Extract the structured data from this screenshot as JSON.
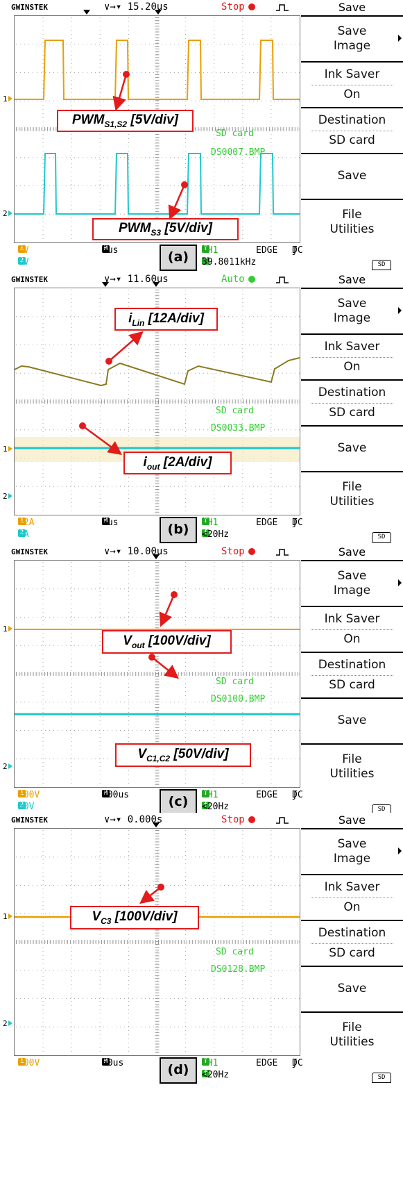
{
  "brand": "GWINSTEK",
  "menu": {
    "title": "Save",
    "save_image": [
      "Save",
      "Image"
    ],
    "ink_saver": [
      "Ink Saver",
      "On"
    ],
    "destination": [
      "Destination",
      "SD card"
    ],
    "save": "Save",
    "file_utilities": [
      "File",
      "Utilities"
    ]
  },
  "sd_icon": "SD",
  "colors": {
    "ch1": "#e8a000",
    "ch2": "#1ec8cc",
    "annotation_border": "#e31b1b",
    "arrow": "#e31b1b",
    "overlay_text": "#33cc33"
  },
  "panels": [
    {
      "tag": "(a)",
      "timebase": "15.20us",
      "run_state": "Stop",
      "run_color": "#e31b1b",
      "overlay_line1": "SD card",
      "overlay_line2": "DS0007.BMP",
      "ch1_scale": "5V",
      "ch2_scale": "5V",
      "time_div": "6us",
      "trigger_source": "CH1",
      "trigger_type": "EDGE",
      "coupling": "DC",
      "trigger_freq": "39.8011kHz",
      "annotations": [
        {
          "main": "PWM",
          "sub": "S1,S2",
          "rest": " [5V/div]"
        },
        {
          "main": "PWM",
          "sub": "S3",
          "rest": " [5V/div]"
        }
      ]
    },
    {
      "tag": "(b)",
      "timebase": "11.60us",
      "run_state": "Auto",
      "run_color": "#33cc33",
      "overlay_line1": "SD card",
      "overlay_line2": "DS0033.BMP",
      "ch1_scale": "12A",
      "ch2_scale": "2A",
      "time_div": "6us",
      "trigger_source": "CH1",
      "trigger_type": "EDGE",
      "coupling": "DC",
      "trigger_freq": "<20Hz",
      "annotations": [
        {
          "main": "i",
          "sub": "Lin",
          "rest": " [12A/div]"
        },
        {
          "main": "i",
          "sub": "out",
          "rest": " [2A/div]"
        }
      ]
    },
    {
      "tag": "(c)",
      "timebase": "10.00us",
      "run_state": "Stop",
      "run_color": "#e31b1b",
      "overlay_line1": "SD card",
      "overlay_line2": "DS0100.BMP",
      "ch1_scale": "100V",
      "ch2_scale": "50V",
      "time_div": "100us",
      "trigger_source": "CH1",
      "trigger_type": "EDGE",
      "coupling": "DC",
      "trigger_freq": "<20Hz",
      "annotations": [
        {
          "main": "V",
          "sub": "out",
          "rest": " [100V/div]"
        },
        {
          "main": "V",
          "sub": "C1,C2",
          "rest": " [50V/div]"
        }
      ]
    },
    {
      "tag": "(d)",
      "timebase": "0.000s",
      "run_state": "Stop",
      "run_color": "#e31b1b",
      "overlay_line1": "SD card",
      "overlay_line2": "DS0128.BMP",
      "ch1_scale": "100V",
      "ch2_scale": "",
      "time_div": "50us",
      "trigger_source": "CH1",
      "trigger_type": "EDGE",
      "coupling": "DC",
      "trigger_freq": "<20Hz",
      "annotations": [
        {
          "main": "V",
          "sub": "C3",
          "rest": " [100V/div]"
        }
      ]
    }
  ]
}
